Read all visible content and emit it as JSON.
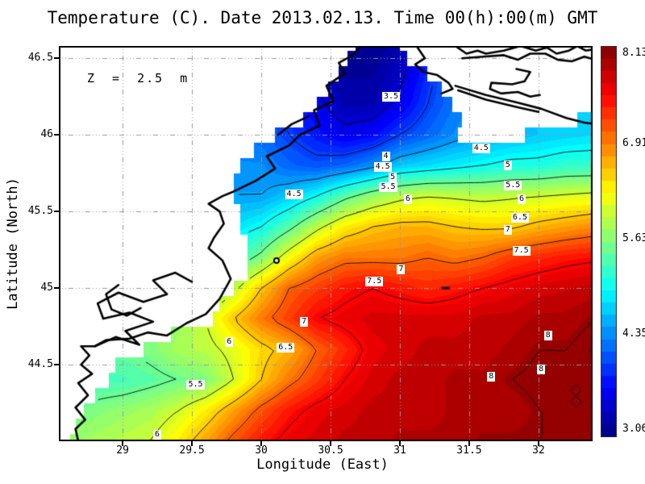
{
  "title": "Temperature (C). Date 2013.02.13. Time 00(h):00(m) GMT",
  "annotation": "Z = 2.5 m",
  "axes": {
    "xlabel": "Longitude (East)",
    "ylabel": "Latitude (North)",
    "x_ticks": [
      29,
      29.5,
      30,
      30.5,
      31,
      31.5,
      32
    ],
    "y_ticks": [
      46.5,
      46,
      45.5,
      45,
      44.5
    ],
    "lon_range": [
      28.54,
      32.39
    ],
    "lat_range": [
      44.0,
      46.58
    ]
  },
  "colorbar": {
    "min": 3.06,
    "max": 8.13,
    "colormap": "jet",
    "ticks": [
      {
        "value": 8.13,
        "label": "8.13"
      },
      {
        "value": 6.91,
        "label": "6.91"
      },
      {
        "value": 5.63,
        "label": "5.63"
      },
      {
        "value": 4.35,
        "label": "4.35"
      },
      {
        "value": 3.06,
        "label": "3.06"
      }
    ]
  },
  "chart_data": {
    "type": "heatmap",
    "variable": "sea water temperature (C)",
    "units": "degrees Celsius",
    "value_range": [
      3.06,
      8.13
    ],
    "grid": {
      "lon_start": 28.6,
      "lon_step": 0.2,
      "lat_start": 46.6,
      "lat_step": -0.2,
      "values": [
        [
          4.5,
          4.5,
          4.5,
          4.5,
          4.4,
          4.3,
          4.0,
          3.6,
          3.4,
          3.3,
          3.15,
          3.1,
          3.3,
          3.8,
          4.2,
          4.4,
          4.5,
          4.6,
          4.7,
          4.8
        ],
        [
          4.5,
          4.5,
          4.5,
          4.4,
          4.3,
          4.2,
          4.0,
          3.7,
          3.5,
          3.35,
          3.2,
          3.2,
          3.4,
          3.9,
          4.3,
          4.5,
          4.6,
          4.6,
          4.7,
          4.8
        ],
        [
          4.6,
          4.6,
          4.5,
          4.5,
          4.4,
          4.3,
          4.1,
          4.0,
          3.9,
          3.6,
          3.3,
          3.3,
          3.6,
          4.0,
          4.3,
          4.5,
          4.6,
          4.7,
          4.7,
          4.8
        ],
        [
          4.7,
          4.7,
          4.6,
          4.6,
          4.5,
          4.4,
          4.3,
          4.2,
          4.0,
          3.8,
          3.6,
          3.7,
          4.0,
          4.2,
          4.4,
          4.5,
          4.6,
          4.7,
          4.75,
          4.8
        ],
        [
          4.8,
          4.8,
          4.7,
          4.7,
          4.6,
          4.5,
          4.4,
          4.4,
          4.2,
          4.1,
          4.2,
          4.4,
          4.7,
          4.8,
          4.9,
          5.0,
          5.1,
          5.1,
          5.2,
          5.2
        ],
        [
          4.9,
          4.9,
          4.8,
          4.8,
          4.7,
          4.6,
          4.5,
          4.5,
          4.7,
          5.0,
          5.4,
          5.7,
          5.9,
          6.0,
          5.95,
          5.9,
          5.95,
          6.0,
          6.05,
          6.1
        ],
        [
          5.0,
          5.0,
          5.0,
          5.0,
          4.9,
          4.8,
          4.8,
          5.0,
          5.4,
          5.9,
          6.3,
          6.5,
          6.6,
          6.6,
          6.5,
          6.45,
          6.45,
          6.6,
          6.7,
          6.8
        ],
        [
          5.3,
          5.3,
          5.3,
          5.3,
          5.2,
          5.2,
          5.2,
          5.6,
          6.2,
          6.7,
          6.9,
          6.9,
          6.9,
          7.0,
          6.9,
          7.0,
          7.2,
          7.3,
          7.4,
          7.45
        ],
        [
          5.5,
          5.5,
          5.5,
          5.5,
          5.5,
          5.5,
          5.9,
          6.5,
          7.0,
          7.2,
          7.4,
          7.5,
          7.4,
          7.3,
          7.4,
          7.5,
          7.6,
          7.7,
          7.75,
          7.8
        ],
        [
          5.6,
          5.6,
          5.6,
          5.6,
          5.7,
          6.0,
          6.5,
          6.9,
          7.2,
          7.5,
          7.6,
          7.7,
          7.7,
          7.7,
          7.7,
          7.8,
          7.8,
          7.9,
          7.9,
          8.0
        ],
        [
          5.5,
          5.5,
          5.5,
          5.6,
          5.8,
          5.9,
          6.1,
          6.4,
          6.6,
          7.0,
          7.3,
          7.6,
          7.7,
          7.8,
          7.8,
          7.8,
          7.9,
          8.0,
          8.0,
          8.1
        ],
        [
          5.2,
          5.3,
          5.3,
          5.4,
          5.5,
          5.6,
          6.0,
          6.5,
          6.9,
          7.2,
          7.5,
          7.7,
          7.8,
          7.8,
          7.9,
          7.9,
          8.0,
          8.05,
          8.0,
          8.0
        ],
        [
          5.5,
          5.6,
          5.7,
          5.8,
          6.0,
          6.3,
          6.7,
          7.1,
          7.4,
          7.6,
          7.7,
          7.8,
          7.8,
          7.8,
          7.9,
          7.9,
          7.9,
          8.0,
          8.0,
          8.0
        ],
        [
          5.7,
          5.8,
          5.9,
          6.0,
          6.3,
          6.7,
          7.1,
          7.4,
          7.6,
          7.7,
          7.8,
          7.8,
          7.9,
          7.9,
          7.9,
          8.0,
          8.0,
          8.0,
          8.0,
          8.0
        ]
      ]
    },
    "sea_mask": {
      "lat_start": 46.65,
      "lat_step": -0.1,
      "intervals": [
        [
          [
            30.68,
            31.0
          ]
        ],
        [
          [
            30.62,
            31.05
          ]
        ],
        [
          [
            30.56,
            31.2
          ]
        ],
        [
          [
            30.48,
            31.3
          ]
        ],
        [
          [
            30.4,
            31.38
          ]
        ],
        [
          [
            30.3,
            31.45
          ],
          [
            32.28,
            32.41
          ]
        ],
        [
          [
            30.1,
            31.42
          ],
          [
            31.9,
            32.41
          ]
        ],
        [
          [
            29.95,
            32.41
          ]
        ],
        [
          [
            29.85,
            32.41
          ]
        ],
        [
          [
            29.8,
            32.41
          ]
        ],
        [
          [
            29.8,
            32.41
          ]
        ],
        [
          [
            29.85,
            32.41
          ]
        ],
        [
          [
            29.85,
            32.41
          ]
        ],
        [
          [
            29.9,
            32.41
          ]
        ],
        [
          [
            29.9,
            32.41
          ]
        ],
        [
          [
            29.9,
            32.41
          ]
        ],
        [
          [
            29.8,
            32.41
          ]
        ],
        [
          [
            29.7,
            32.41
          ]
        ],
        [
          [
            29.65,
            32.41
          ]
        ],
        [
          [
            29.35,
            32.41
          ]
        ],
        [
          [
            29.15,
            32.41
          ]
        ],
        [
          [
            28.95,
            32.41
          ]
        ],
        [
          [
            28.9,
            32.41
          ]
        ],
        [
          [
            28.8,
            32.41
          ]
        ],
        [
          [
            28.72,
            32.41
          ]
        ],
        [
          [
            28.66,
            32.41
          ]
        ],
        [
          [
            28.62,
            32.41
          ]
        ]
      ]
    },
    "contour_levels": [
      3.5,
      4,
      4.5,
      5,
      5.5,
      6,
      6.5,
      7,
      7.5,
      8
    ],
    "contour_labels": [
      {
        "text": "3.5",
        "lon": 30.94,
        "lat": 46.25
      },
      {
        "text": "4",
        "lon": 30.9,
        "lat": 45.86
      },
      {
        "text": "4.5",
        "lon": 30.88,
        "lat": 45.79
      },
      {
        "text": "5",
        "lon": 30.95,
        "lat": 45.72
      },
      {
        "text": "5.5",
        "lon": 30.92,
        "lat": 45.66
      },
      {
        "text": "6",
        "lon": 31.06,
        "lat": 45.58
      },
      {
        "text": "4.5",
        "lon": 31.59,
        "lat": 45.91
      },
      {
        "text": "5",
        "lon": 31.78,
        "lat": 45.8
      },
      {
        "text": "5.5",
        "lon": 31.82,
        "lat": 45.67
      },
      {
        "text": "6",
        "lon": 31.88,
        "lat": 45.58
      },
      {
        "text": "6.5",
        "lon": 31.87,
        "lat": 45.46
      },
      {
        "text": "7",
        "lon": 31.78,
        "lat": 45.38
      },
      {
        "text": "7.5",
        "lon": 31.88,
        "lat": 45.24
      },
      {
        "text": "7",
        "lon": 31.01,
        "lat": 45.12
      },
      {
        "text": "7.5",
        "lon": 30.82,
        "lat": 45.04
      },
      {
        "text": "4.5",
        "lon": 30.24,
        "lat": 45.61
      },
      {
        "text": "7",
        "lon": 30.31,
        "lat": 44.78
      },
      {
        "text": "6",
        "lon": 29.77,
        "lat": 44.65
      },
      {
        "text": "6.5",
        "lon": 30.18,
        "lat": 44.61
      },
      {
        "text": "5.5",
        "lon": 29.53,
        "lat": 44.37
      },
      {
        "text": "6",
        "lon": 29.25,
        "lat": 44.04
      },
      {
        "text": "8",
        "lon": 32.07,
        "lat": 44.69
      },
      {
        "text": "8",
        "lon": 32.02,
        "lat": 44.47
      },
      {
        "text": "8",
        "lon": 31.66,
        "lat": 44.42
      }
    ],
    "coastlines": [
      [
        [
          28.68,
          44.0
        ],
        [
          28.66,
          44.08
        ],
        [
          28.73,
          44.14
        ],
        [
          28.66,
          44.22
        ],
        [
          28.75,
          44.3
        ],
        [
          28.68,
          44.38
        ],
        [
          28.78,
          44.44
        ],
        [
          28.7,
          44.5
        ],
        [
          28.76,
          44.56
        ],
        [
          28.7,
          44.62
        ],
        [
          28.8,
          44.62
        ],
        [
          28.88,
          44.66
        ],
        [
          29.05,
          44.67
        ],
        [
          29.18,
          44.71
        ],
        [
          29.32,
          44.69
        ],
        [
          29.46,
          44.77
        ],
        [
          29.6,
          44.83
        ],
        [
          29.7,
          44.93
        ],
        [
          29.78,
          45.06
        ],
        [
          29.72,
          45.18
        ],
        [
          29.62,
          45.26
        ],
        [
          29.66,
          45.33
        ],
        [
          29.73,
          45.42
        ],
        [
          29.7,
          45.5
        ],
        [
          29.62,
          45.55
        ],
        [
          29.72,
          45.6
        ],
        [
          29.8,
          45.63
        ],
        [
          29.96,
          45.7
        ],
        [
          30.1,
          45.78
        ],
        [
          30.04,
          45.86
        ],
        [
          30.2,
          45.93
        ],
        [
          30.28,
          46.0
        ],
        [
          30.42,
          46.06
        ],
        [
          30.38,
          46.16
        ],
        [
          30.52,
          46.22
        ],
        [
          30.47,
          46.32
        ],
        [
          30.6,
          46.4
        ],
        [
          30.56,
          46.47
        ],
        [
          30.66,
          46.52
        ],
        [
          30.72,
          46.58
        ]
      ],
      [
        [
          28.8,
          44.62
        ],
        [
          28.95,
          44.68
        ],
        [
          29.12,
          44.63
        ],
        [
          29.02,
          44.72
        ],
        [
          29.22,
          44.78
        ],
        [
          29.05,
          44.84
        ],
        [
          28.86,
          44.8
        ],
        [
          28.82,
          44.9
        ],
        [
          28.97,
          44.97
        ],
        [
          29.15,
          44.91
        ],
        [
          29.32,
          44.96
        ],
        [
          29.22,
          45.05
        ],
        [
          29.38,
          45.1
        ],
        [
          29.5,
          45.04
        ]
      ],
      [
        [
          28.97,
          45.02
        ],
        [
          28.88,
          44.96
        ],
        [
          28.92,
          44.86
        ],
        [
          29.03,
          44.82
        ],
        [
          29.13,
          44.87
        ]
      ],
      [
        [
          30.12,
          46.0
        ],
        [
          30.22,
          46.07
        ],
        [
          30.34,
          46.12
        ]
      ],
      [
        [
          31.12,
          46.58
        ],
        [
          31.18,
          46.5
        ],
        [
          31.11,
          46.46
        ],
        [
          31.17,
          46.41
        ],
        [
          31.27,
          46.39
        ],
        [
          31.35,
          46.34
        ],
        [
          31.38,
          46.3
        ],
        [
          31.3,
          46.27
        ]
      ],
      [
        [
          31.4,
          46.58
        ],
        [
          31.48,
          46.53
        ],
        [
          31.56,
          46.55
        ],
        [
          31.62,
          46.53
        ],
        [
          31.75,
          46.55
        ],
        [
          31.87,
          46.58
        ],
        [
          31.98,
          46.55
        ],
        [
          32.06,
          46.57
        ],
        [
          32.13,
          46.53
        ],
        [
          32.22,
          46.55
        ],
        [
          32.28,
          46.58
        ],
        [
          32.34,
          46.55
        ],
        [
          32.41,
          46.56
        ]
      ],
      [
        [
          31.45,
          46.5
        ],
        [
          31.6,
          46.51
        ],
        [
          31.75,
          46.52
        ],
        [
          31.85,
          46.49
        ],
        [
          31.94,
          46.53
        ],
        [
          32.05,
          46.53
        ],
        [
          32.14,
          46.49
        ],
        [
          32.24,
          46.48
        ],
        [
          32.33,
          46.51
        ],
        [
          32.41,
          46.49
        ]
      ],
      [
        [
          31.84,
          46.43
        ],
        [
          31.94,
          46.41
        ],
        [
          31.9,
          46.35
        ],
        [
          31.81,
          46.33
        ],
        [
          31.66,
          46.34
        ],
        [
          31.65,
          46.3
        ],
        [
          31.73,
          46.27
        ],
        [
          31.85,
          46.28
        ],
        [
          31.94,
          46.25
        ],
        [
          32.01,
          46.26
        ]
      ],
      [
        [
          31.4,
          46.32
        ],
        [
          31.62,
          46.26
        ],
        [
          31.85,
          46.21
        ],
        [
          32.02,
          46.17
        ],
        [
          32.2,
          46.11
        ],
        [
          32.33,
          46.08
        ],
        [
          32.41,
          46.07
        ]
      ],
      [
        [
          31.42,
          46.29
        ],
        [
          31.62,
          46.23
        ],
        [
          31.85,
          46.18
        ],
        [
          32.0,
          46.15
        ]
      ]
    ],
    "islands": [
      {
        "type": "ring",
        "lon": 30.11,
        "lat": 45.18
      },
      {
        "type": "dash",
        "lon": 31.33,
        "lat": 45.0
      }
    ],
    "grid_on": true,
    "gridline_color": "#999999",
    "land_color": "#ffffff",
    "coast_color": "#000000"
  }
}
